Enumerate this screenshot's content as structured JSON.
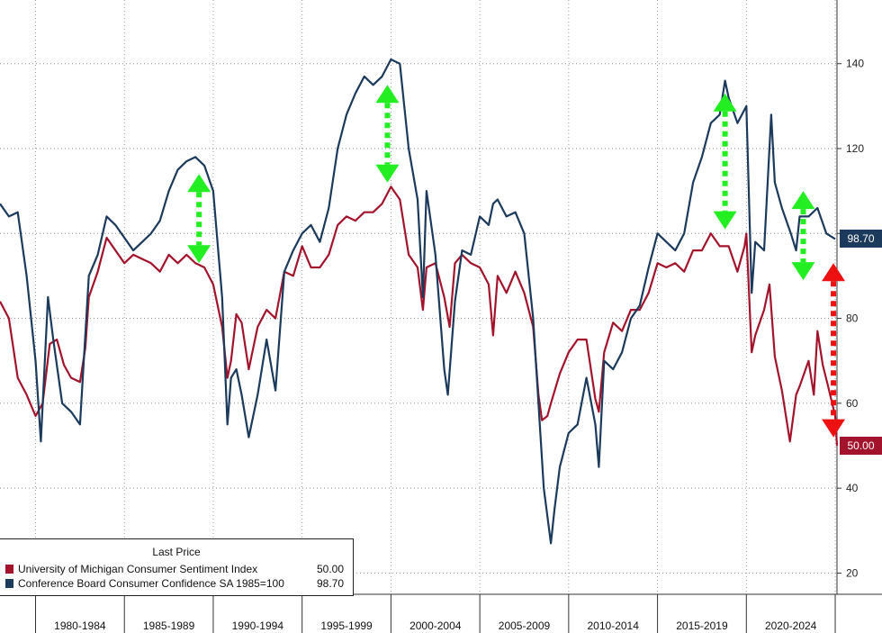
{
  "chart_data": {
    "type": "line",
    "title": "",
    "xlabel": "",
    "ylabel": "",
    "x_range": [
      1978.0,
      2025.1
    ],
    "ylim": [
      15,
      155
    ],
    "y_ticks": [
      20,
      40,
      60,
      80,
      100,
      120,
      140
    ],
    "y_tick_labels": [
      "20",
      "40",
      "60",
      "80",
      "100",
      "120",
      "140"
    ],
    "x_tick_labels": [
      "1980-1984",
      "1985-1989",
      "1990-1994",
      "1995-1999",
      "2000-2004",
      "2005-2009",
      "2010-2014",
      "2015-2019",
      "2020-2024"
    ],
    "x_period_bounds": [
      1980,
      1985,
      1990,
      1995,
      2000,
      2005,
      2010,
      2015,
      2020,
      2025
    ],
    "grid": true,
    "legend_position": "bottom-left",
    "legend_title": "Last Price",
    "series": [
      {
        "name": "University of Michigan Consumer Sentiment Index",
        "color": "#a3142c",
        "last_value": "50.00",
        "x": [
          1978.0,
          1978.5,
          1979.0,
          1979.5,
          1980.0,
          1980.4,
          1980.8,
          1981.2,
          1981.6,
          1982.0,
          1982.5,
          1982.8,
          1983.0,
          1983.5,
          1984.0,
          1984.5,
          1985.0,
          1985.5,
          1986.0,
          1986.5,
          1987.0,
          1987.5,
          1988.0,
          1988.5,
          1989.0,
          1989.5,
          1990.0,
          1990.5,
          1990.8,
          1991.0,
          1991.3,
          1991.6,
          1992.0,
          1992.5,
          1993.0,
          1993.5,
          1994.0,
          1994.5,
          1995.0,
          1995.5,
          1996.0,
          1996.5,
          1997.0,
          1997.5,
          1998.0,
          1998.5,
          1999.0,
          1999.5,
          2000.0,
          2000.5,
          2001.0,
          2001.5,
          2001.8,
          2002.0,
          2002.5,
          2003.0,
          2003.3,
          2003.6,
          2004.0,
          2004.5,
          2005.0,
          2005.5,
          2005.75,
          2006.0,
          2006.5,
          2007.0,
          2007.5,
          2008.0,
          2008.3,
          2008.5,
          2008.8,
          2009.0,
          2009.5,
          2010.0,
          2010.5,
          2011.0,
          2011.5,
          2011.7,
          2012.0,
          2012.5,
          2013.0,
          2013.5,
          2014.0,
          2014.5,
          2015.0,
          2015.5,
          2016.0,
          2016.5,
          2017.0,
          2017.5,
          2018.0,
          2018.5,
          2019.0,
          2019.5,
          2019.9,
          2020.0,
          2020.3,
          2020.5,
          2021.0,
          2021.3,
          2021.6,
          2022.0,
          2022.45,
          2022.8,
          2023.0,
          2023.5,
          2023.8,
          2024.0,
          2024.3,
          2024.6,
          2025.0,
          2025.1
        ],
        "y": [
          84,
          80,
          66,
          62,
          57,
          60,
          74,
          75,
          69,
          66,
          65,
          73,
          85,
          91,
          99,
          96,
          93,
          95,
          94,
          93,
          91,
          95,
          93,
          95,
          93,
          92,
          88,
          78,
          66,
          70,
          81,
          79,
          68,
          78,
          82,
          80,
          91,
          90,
          97,
          92,
          92,
          95,
          102,
          104,
          103,
          105,
          105,
          107,
          111,
          108,
          95,
          92,
          82,
          92,
          93,
          85,
          78,
          93,
          95,
          93,
          92,
          88,
          76,
          90,
          86,
          91,
          86,
          78,
          62,
          56,
          57,
          60,
          67,
          72,
          75,
          75,
          61,
          58,
          72,
          79,
          77,
          82,
          82,
          86,
          93,
          92,
          93,
          91,
          96,
          96,
          100,
          97,
          97,
          91,
          97,
          100,
          72,
          76,
          82,
          88,
          71,
          63,
          51,
          62,
          64,
          70,
          62,
          77,
          69,
          64,
          57,
          50
        ]
      },
      {
        "name": "Conference Board Consumer Confidence SA 1985=100",
        "color": "#1b3a5c",
        "last_value": "98.70",
        "x": [
          1978.0,
          1978.5,
          1979.0,
          1979.5,
          1980.0,
          1980.3,
          1980.7,
          1981.0,
          1981.5,
          1982.0,
          1982.5,
          1983.0,
          1983.5,
          1984.0,
          1984.5,
          1985.0,
          1985.5,
          1986.0,
          1986.5,
          1987.0,
          1987.5,
          1988.0,
          1988.5,
          1989.0,
          1989.5,
          1990.0,
          1990.5,
          1990.8,
          1991.0,
          1991.3,
          1991.6,
          1992.0,
          1992.5,
          1993.0,
          1993.5,
          1994.0,
          1994.5,
          1995.0,
          1995.5,
          1996.0,
          1996.5,
          1997.0,
          1997.5,
          1998.0,
          1998.5,
          1999.0,
          1999.5,
          2000.0,
          2000.5,
          2001.0,
          2001.5,
          2001.8,
          2002.0,
          2002.5,
          2003.0,
          2003.2,
          2003.6,
          2004.0,
          2004.5,
          2005.0,
          2005.5,
          2005.75,
          2006.0,
          2006.5,
          2007.0,
          2007.5,
          2008.0,
          2008.3,
          2008.6,
          2009.0,
          2009.2,
          2009.5,
          2010.0,
          2010.5,
          2011.0,
          2011.5,
          2011.7,
          2012.0,
          2012.5,
          2013.0,
          2013.5,
          2014.0,
          2014.5,
          2015.0,
          2015.5,
          2016.0,
          2016.5,
          2017.0,
          2017.5,
          2018.0,
          2018.5,
          2018.8,
          2019.0,
          2019.5,
          2020.0,
          2020.3,
          2020.5,
          2021.0,
          2021.4,
          2021.6,
          2022.0,
          2022.5,
          2022.8,
          2023.0,
          2023.5,
          2024.0,
          2024.5,
          2025.0
        ],
        "y": [
          107,
          104,
          105,
          90,
          70,
          51,
          85,
          75,
          60,
          58,
          55,
          90,
          95,
          104,
          102,
          99,
          96,
          98,
          100,
          103,
          110,
          115,
          117,
          118,
          116,
          110,
          85,
          55,
          66,
          68,
          62,
          52,
          62,
          75,
          63,
          91,
          96,
          100,
          102,
          98,
          106,
          120,
          128,
          133,
          137,
          135,
          137,
          141,
          140,
          120,
          108,
          85,
          110,
          95,
          68,
          62,
          84,
          96,
          95,
          104,
          102,
          107,
          108,
          104,
          105,
          100,
          80,
          60,
          40,
          27,
          35,
          45,
          53,
          55,
          66,
          55,
          45,
          70,
          68,
          72,
          80,
          83,
          92,
          100,
          98,
          96,
          100,
          112,
          118,
          126,
          128,
          136,
          132,
          126,
          130,
          86,
          98,
          96,
          128,
          112,
          106,
          100,
          96,
          104,
          104,
          106,
          100,
          98.7
        ]
      }
    ],
    "annotations": [
      {
        "type": "double-arrow",
        "color": "#22ee22",
        "x": 1989.2,
        "y_top": 114,
        "y_bottom": 93
      },
      {
        "type": "double-arrow",
        "color": "#22ee22",
        "x": 1999.8,
        "y_top": 135,
        "y_bottom": 112
      },
      {
        "type": "double-arrow",
        "color": "#22ee22",
        "x": 2018.8,
        "y_top": 133,
        "y_bottom": 101
      },
      {
        "type": "double-arrow",
        "color": "#22ee22",
        "x": 2023.2,
        "y_top": 110,
        "y_bottom": 89
      },
      {
        "type": "double-arrow",
        "color": "#ee1111",
        "x": 2024.9,
        "y_top": 93,
        "y_bottom": 52
      }
    ]
  }
}
